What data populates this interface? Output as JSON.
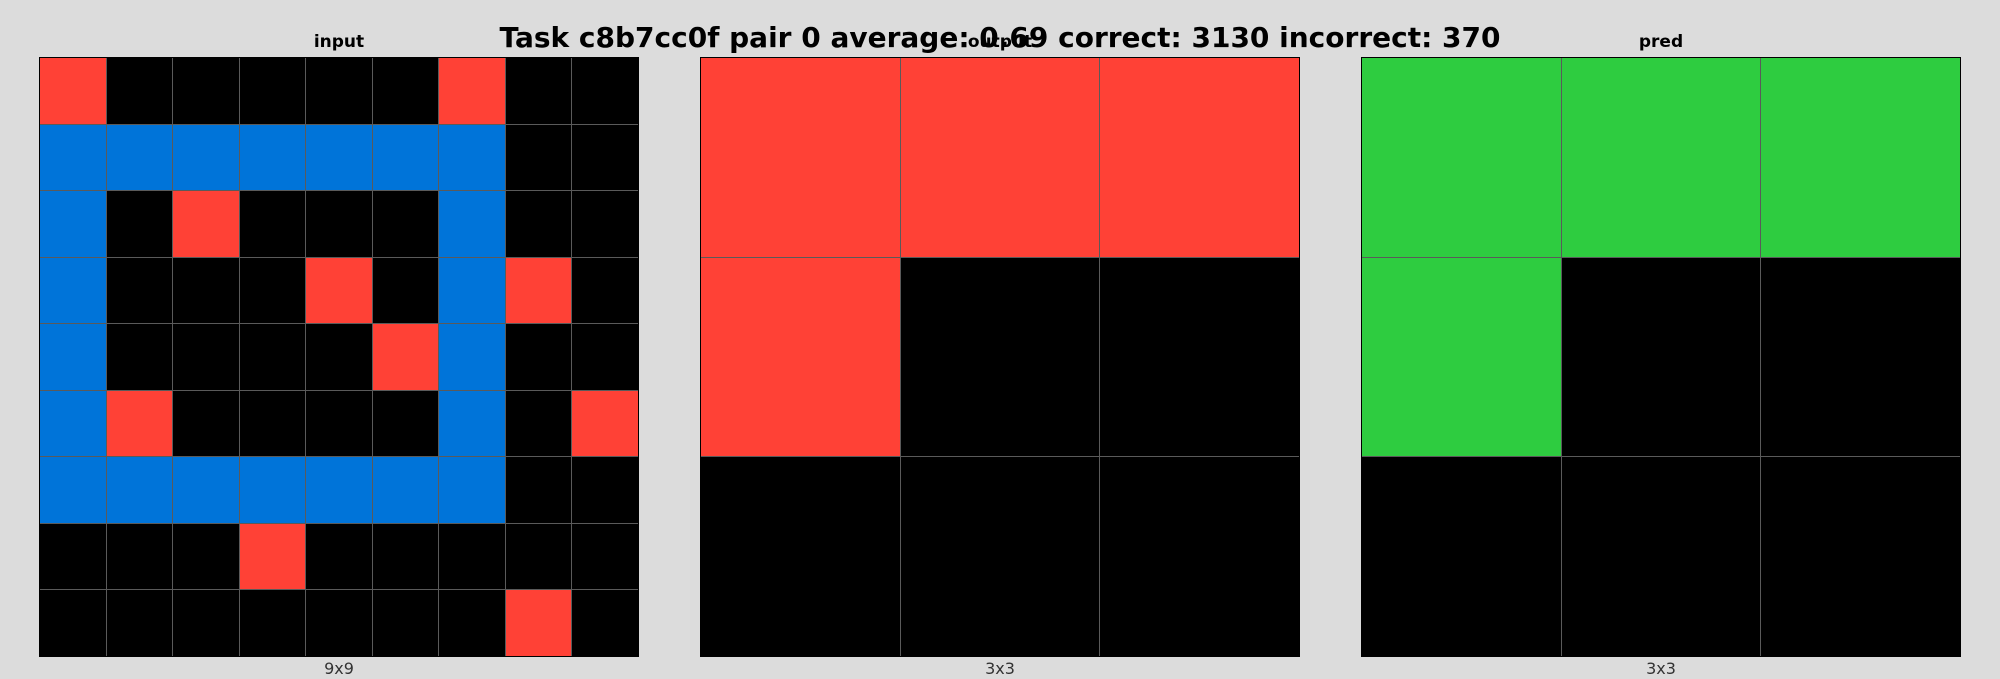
{
  "title": "Task c8b7cc0f pair 0 average: 0.69 correct: 3130 incorrect: 370",
  "palette": {
    "0": "#000000",
    "1": "#0074d9",
    "2": "#ff4136",
    "3": "#2ecc40"
  },
  "panels": [
    {
      "title": "input",
      "dims": "9x9",
      "grid": [
        [
          2,
          0,
          0,
          0,
          0,
          0,
          2,
          0,
          0
        ],
        [
          1,
          1,
          1,
          1,
          1,
          1,
          1,
          0,
          0
        ],
        [
          1,
          0,
          2,
          0,
          0,
          0,
          1,
          0,
          0
        ],
        [
          1,
          0,
          0,
          0,
          2,
          0,
          1,
          2,
          0
        ],
        [
          1,
          0,
          0,
          0,
          0,
          2,
          1,
          0,
          0
        ],
        [
          1,
          2,
          0,
          0,
          0,
          0,
          1,
          0,
          2
        ],
        [
          1,
          1,
          1,
          1,
          1,
          1,
          1,
          0,
          0
        ],
        [
          0,
          0,
          0,
          2,
          0,
          0,
          0,
          0,
          0
        ],
        [
          0,
          0,
          0,
          0,
          0,
          0,
          0,
          2,
          0
        ]
      ]
    },
    {
      "title": "output",
      "dims": "3x3",
      "grid": [
        [
          2,
          2,
          2
        ],
        [
          2,
          0,
          0
        ],
        [
          0,
          0,
          0
        ]
      ]
    },
    {
      "title": "pred",
      "dims": "3x3",
      "grid": [
        [
          3,
          3,
          3
        ],
        [
          3,
          0,
          0
        ],
        [
          0,
          0,
          0
        ]
      ]
    }
  ]
}
